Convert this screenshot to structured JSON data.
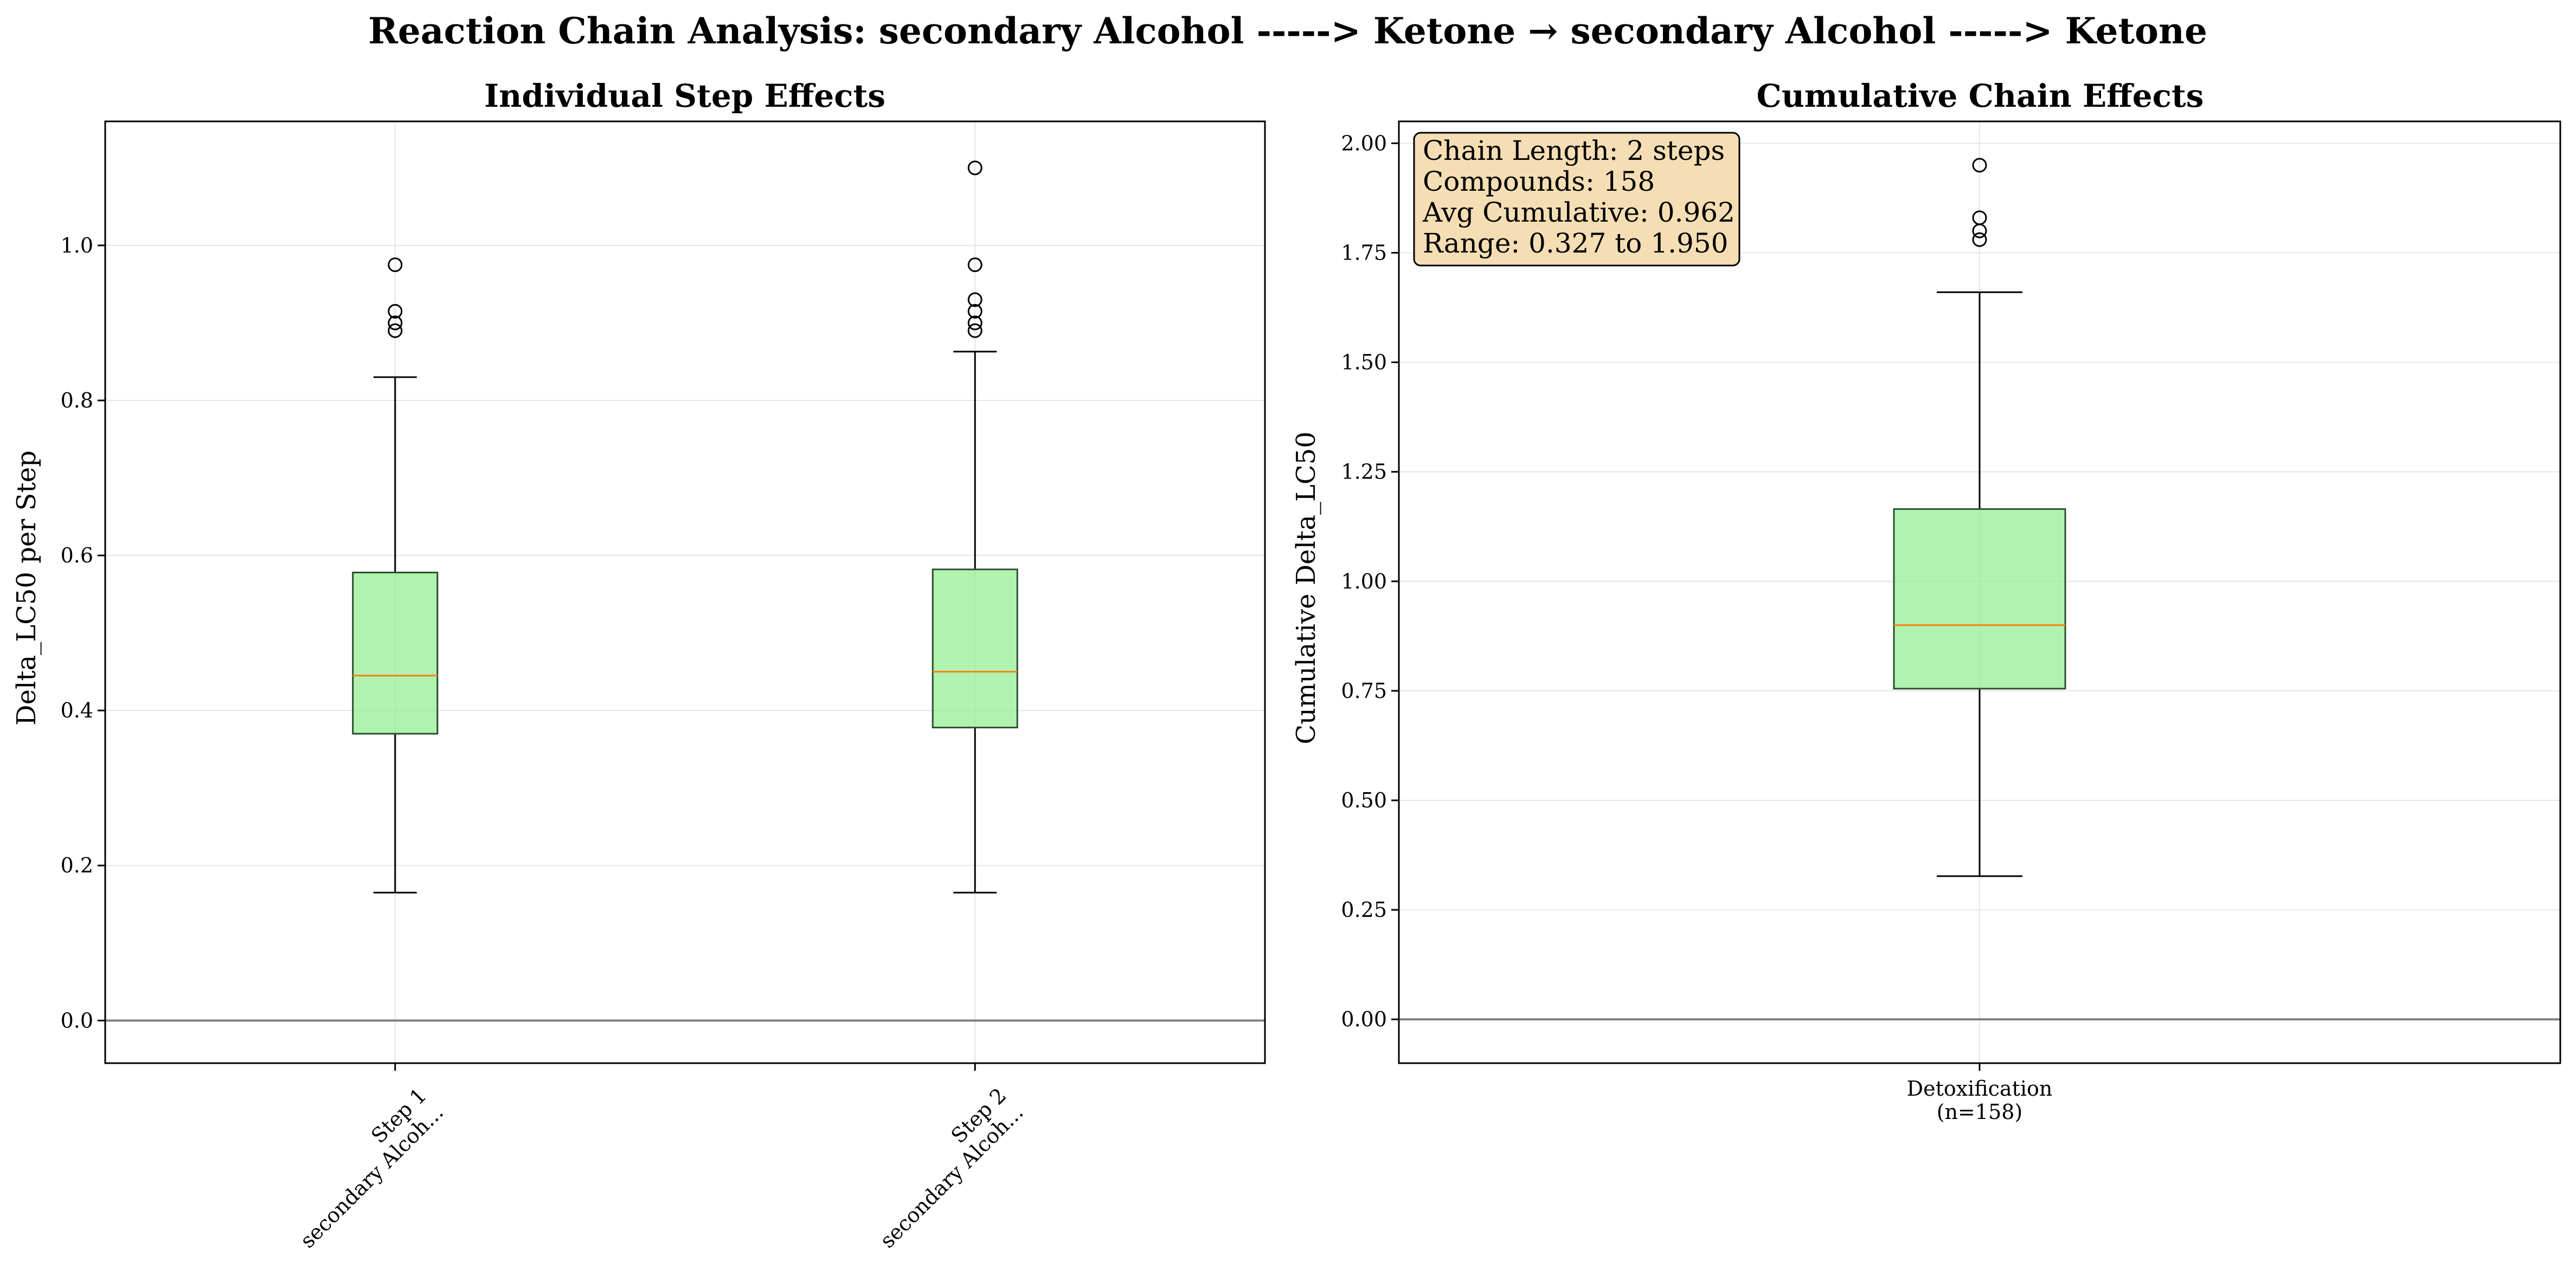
{
  "figure": {
    "suptitle": "Reaction Chain Analysis: secondary Alcohol -----> Ketone → secondary Alcohol -----> Ketone"
  },
  "colors": {
    "box_fill": "#90EE90",
    "box_edge": "#2d4f2d",
    "median": "#ff7f0e",
    "zero_line": "#808080",
    "grid": "#e6e6e6",
    "info_fill": "#f5deb3"
  },
  "chart_data": [
    {
      "type": "box",
      "title": "Individual Step Effects",
      "xlabel": "",
      "ylabel": "Delta_LC50 per Step",
      "ylim": [
        -0.055,
        1.16
      ],
      "yticks": [
        0.0,
        0.2,
        0.4,
        0.6,
        0.8,
        1.0
      ],
      "ytick_labels": [
        "0.0",
        "0.2",
        "0.4",
        "0.6",
        "0.8",
        "1.0"
      ],
      "grid": true,
      "reference_line_y": 0.0,
      "categories": [
        {
          "line1": "Step 1",
          "line2": "secondary Alcoh..."
        },
        {
          "line1": "Step 2",
          "line2": "secondary Alcoh..."
        }
      ],
      "boxes": [
        {
          "whisker_low": 0.165,
          "q1": 0.37,
          "median": 0.445,
          "q3": 0.578,
          "whisker_high": 0.83,
          "outliers": [
            0.89,
            0.9,
            0.915,
            0.975
          ]
        },
        {
          "whisker_low": 0.165,
          "q1": 0.378,
          "median": 0.45,
          "q3": 0.582,
          "whisker_high": 0.863,
          "outliers": [
            0.89,
            0.9,
            0.915,
            0.93,
            0.975,
            1.1
          ]
        }
      ]
    },
    {
      "type": "box",
      "title": "Cumulative Chain Effects",
      "xlabel": "",
      "ylabel": "Cumulative Delta_LC50",
      "ylim": [
        -0.1,
        2.05
      ],
      "yticks": [
        0.0,
        0.25,
        0.5,
        0.75,
        1.0,
        1.25,
        1.5,
        1.75,
        2.0
      ],
      "ytick_labels": [
        "0.00",
        "0.25",
        "0.50",
        "0.75",
        "1.00",
        "1.25",
        "1.50",
        "1.75",
        "2.00"
      ],
      "grid": true,
      "reference_line_y": 0.0,
      "categories": [
        {
          "line1": "Detoxification",
          "line2": "(n=158)"
        }
      ],
      "boxes": [
        {
          "whisker_low": 0.327,
          "q1": 0.755,
          "median": 0.9,
          "q3": 1.165,
          "whisker_high": 1.66,
          "outliers": [
            1.78,
            1.8,
            1.83,
            1.95
          ]
        }
      ],
      "info_box": {
        "placement": "top-left",
        "lines": [
          "Chain Length: 2 steps",
          "Compounds: 158",
          "Avg Cumulative: 0.962",
          "Range: 0.327 to 1.950"
        ]
      }
    }
  ]
}
